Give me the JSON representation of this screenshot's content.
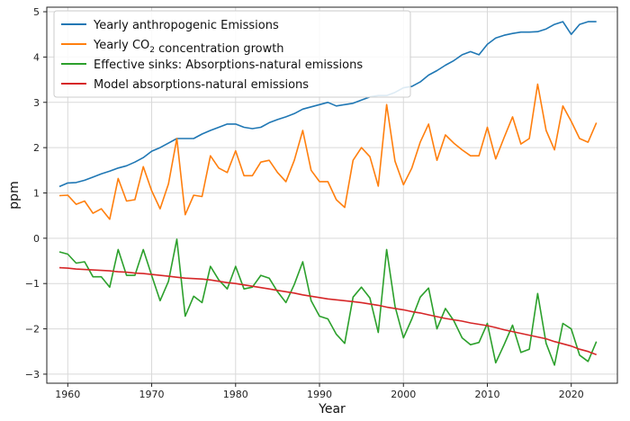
{
  "chart_data": {
    "type": "line",
    "title": "",
    "xlabel": "Year",
    "ylabel": "ppm",
    "xlim": [
      1957.5,
      2025.5
    ],
    "ylim": [
      -3.2,
      5.1
    ],
    "xticks": [
      1960,
      1970,
      1980,
      1990,
      2000,
      2010,
      2020
    ],
    "yticks": [
      -3,
      -2,
      -1,
      0,
      1,
      2,
      3,
      4,
      5
    ],
    "grid": true,
    "legend_position": "top-left",
    "series": [
      {
        "name": "Yearly anthropogenic Emissions",
        "legend_parts": [
          {
            "t": "Yearly anthropogenic Emissions"
          }
        ],
        "color": "#1f77b4",
        "x": [
          1959,
          1960,
          1961,
          1962,
          1963,
          1964,
          1965,
          1966,
          1967,
          1968,
          1969,
          1970,
          1971,
          1972,
          1973,
          1974,
          1975,
          1976,
          1977,
          1978,
          1979,
          1980,
          1981,
          1982,
          1983,
          1984,
          1985,
          1986,
          1987,
          1988,
          1989,
          1990,
          1991,
          1992,
          1993,
          1994,
          1995,
          1996,
          1997,
          1998,
          1999,
          2000,
          2001,
          2002,
          2003,
          2004,
          2005,
          2006,
          2007,
          2008,
          2009,
          2010,
          2011,
          2012,
          2013,
          2014,
          2015,
          2016,
          2017,
          2018,
          2019,
          2020,
          2021,
          2022,
          2023
        ],
        "y": [
          1.14,
          1.22,
          1.23,
          1.28,
          1.35,
          1.42,
          1.48,
          1.55,
          1.6,
          1.68,
          1.78,
          1.92,
          2.0,
          2.1,
          2.2,
          2.2,
          2.2,
          2.3,
          2.38,
          2.45,
          2.52,
          2.52,
          2.45,
          2.42,
          2.45,
          2.55,
          2.62,
          2.68,
          2.75,
          2.85,
          2.9,
          2.95,
          3.0,
          2.92,
          2.95,
          2.98,
          3.05,
          3.12,
          3.15,
          3.15,
          3.22,
          3.32,
          3.35,
          3.45,
          3.6,
          3.7,
          3.82,
          3.92,
          4.05,
          4.12,
          4.05,
          4.28,
          4.42,
          4.48,
          4.52,
          4.55,
          4.55,
          4.56,
          4.62,
          4.72,
          4.78,
          4.5,
          4.72,
          4.78,
          4.78
        ]
      },
      {
        "name": "Yearly CO₂ concentration growth",
        "legend_parts": [
          {
            "t": "Yearly CO"
          },
          {
            "t": "2",
            "sub": true
          },
          {
            "t": " concentration growth"
          }
        ],
        "color": "#ff7f0e",
        "x": [
          1959,
          1960,
          1961,
          1962,
          1963,
          1964,
          1965,
          1966,
          1967,
          1968,
          1969,
          1970,
          1971,
          1972,
          1973,
          1974,
          1975,
          1976,
          1977,
          1978,
          1979,
          1980,
          1981,
          1982,
          1983,
          1984,
          1985,
          1986,
          1987,
          1988,
          1989,
          1990,
          1991,
          1992,
          1993,
          1994,
          1995,
          1996,
          1997,
          1998,
          1999,
          2000,
          2001,
          2002,
          2003,
          2004,
          2005,
          2006,
          2007,
          2008,
          2009,
          2010,
          2011,
          2012,
          2013,
          2014,
          2015,
          2016,
          2017,
          2018,
          2019,
          2020,
          2021,
          2022,
          2023
        ],
        "y": [
          0.94,
          0.95,
          0.75,
          0.82,
          0.55,
          0.65,
          0.42,
          1.32,
          0.82,
          0.85,
          1.58,
          1.05,
          0.65,
          1.2,
          2.2,
          0.52,
          0.95,
          0.92,
          1.82,
          1.55,
          1.45,
          1.93,
          1.38,
          1.38,
          1.68,
          1.72,
          1.45,
          1.25,
          1.72,
          2.38,
          1.5,
          1.25,
          1.25,
          0.85,
          0.68,
          1.72,
          2.0,
          1.8,
          1.15,
          2.95,
          1.7,
          1.18,
          1.55,
          2.12,
          2.52,
          1.72,
          2.28,
          2.1,
          1.95,
          1.82,
          1.82,
          2.45,
          1.75,
          2.22,
          2.68,
          2.08,
          2.2,
          3.4,
          2.38,
          1.95,
          2.92,
          2.58,
          2.2,
          2.12,
          2.55
        ]
      },
      {
        "name": "Effective sinks: Absorptions-natural emissions",
        "legend_parts": [
          {
            "t": "Effective sinks: Absorptions-natural emissions"
          }
        ],
        "color": "#2ca02c",
        "x": [
          1959,
          1960,
          1961,
          1962,
          1963,
          1964,
          1965,
          1966,
          1967,
          1968,
          1969,
          1970,
          1971,
          1972,
          1973,
          1974,
          1975,
          1976,
          1977,
          1978,
          1979,
          1980,
          1981,
          1982,
          1983,
          1984,
          1985,
          1986,
          1987,
          1988,
          1989,
          1990,
          1991,
          1992,
          1993,
          1994,
          1995,
          1996,
          1997,
          1998,
          1999,
          2000,
          2001,
          2002,
          2003,
          2004,
          2005,
          2006,
          2007,
          2008,
          2009,
          2010,
          2011,
          2012,
          2013,
          2014,
          2015,
          2016,
          2017,
          2018,
          2019,
          2020,
          2021,
          2022,
          2023
        ],
        "y": [
          -0.3,
          -0.35,
          -0.55,
          -0.52,
          -0.85,
          -0.85,
          -1.08,
          -0.25,
          -0.82,
          -0.82,
          -0.25,
          -0.82,
          -1.38,
          -0.95,
          -0.02,
          -1.72,
          -1.28,
          -1.42,
          -0.62,
          -0.92,
          -1.12,
          -0.62,
          -1.12,
          -1.08,
          -0.82,
          -0.88,
          -1.18,
          -1.42,
          -1.02,
          -0.52,
          -1.38,
          -1.72,
          -1.78,
          -2.12,
          -2.32,
          -1.3,
          -1.08,
          -1.32,
          -2.08,
          -0.25,
          -1.5,
          -2.2,
          -1.78,
          -1.3,
          -1.1,
          -2.0,
          -1.55,
          -1.82,
          -2.2,
          -2.35,
          -2.3,
          -1.88,
          -2.75,
          -2.35,
          -1.92,
          -2.52,
          -2.45,
          -1.22,
          -2.32,
          -2.8,
          -1.88,
          -2.0,
          -2.58,
          -2.72,
          -2.28
        ]
      },
      {
        "name": "Model absorptions-natural emissions",
        "legend_parts": [
          {
            "t": "Model absorptions-natural emissions"
          }
        ],
        "color": "#d62728",
        "x": [
          1959,
          1960,
          1961,
          1962,
          1963,
          1964,
          1965,
          1966,
          1967,
          1968,
          1969,
          1970,
          1971,
          1972,
          1973,
          1974,
          1975,
          1976,
          1977,
          1978,
          1979,
          1980,
          1981,
          1982,
          1983,
          1984,
          1985,
          1986,
          1987,
          1988,
          1989,
          1990,
          1991,
          1992,
          1993,
          1994,
          1995,
          1996,
          1997,
          1998,
          1999,
          2000,
          2001,
          2002,
          2003,
          2004,
          2005,
          2006,
          2007,
          2008,
          2009,
          2010,
          2011,
          2012,
          2013,
          2014,
          2015,
          2016,
          2017,
          2018,
          2019,
          2020,
          2021,
          2022,
          2023
        ],
        "y": [
          -0.65,
          -0.66,
          -0.68,
          -0.69,
          -0.7,
          -0.71,
          -0.72,
          -0.74,
          -0.75,
          -0.77,
          -0.78,
          -0.8,
          -0.82,
          -0.84,
          -0.86,
          -0.88,
          -0.89,
          -0.9,
          -0.92,
          -0.95,
          -0.98,
          -1.0,
          -1.03,
          -1.06,
          -1.09,
          -1.12,
          -1.15,
          -1.18,
          -1.21,
          -1.25,
          -1.28,
          -1.31,
          -1.34,
          -1.36,
          -1.38,
          -1.4,
          -1.42,
          -1.45,
          -1.48,
          -1.52,
          -1.55,
          -1.58,
          -1.62,
          -1.65,
          -1.69,
          -1.73,
          -1.77,
          -1.8,
          -1.83,
          -1.87,
          -1.9,
          -1.93,
          -1.97,
          -2.02,
          -2.06,
          -2.1,
          -2.14,
          -2.18,
          -2.22,
          -2.28,
          -2.33,
          -2.38,
          -2.45,
          -2.5,
          -2.57
        ]
      }
    ]
  }
}
